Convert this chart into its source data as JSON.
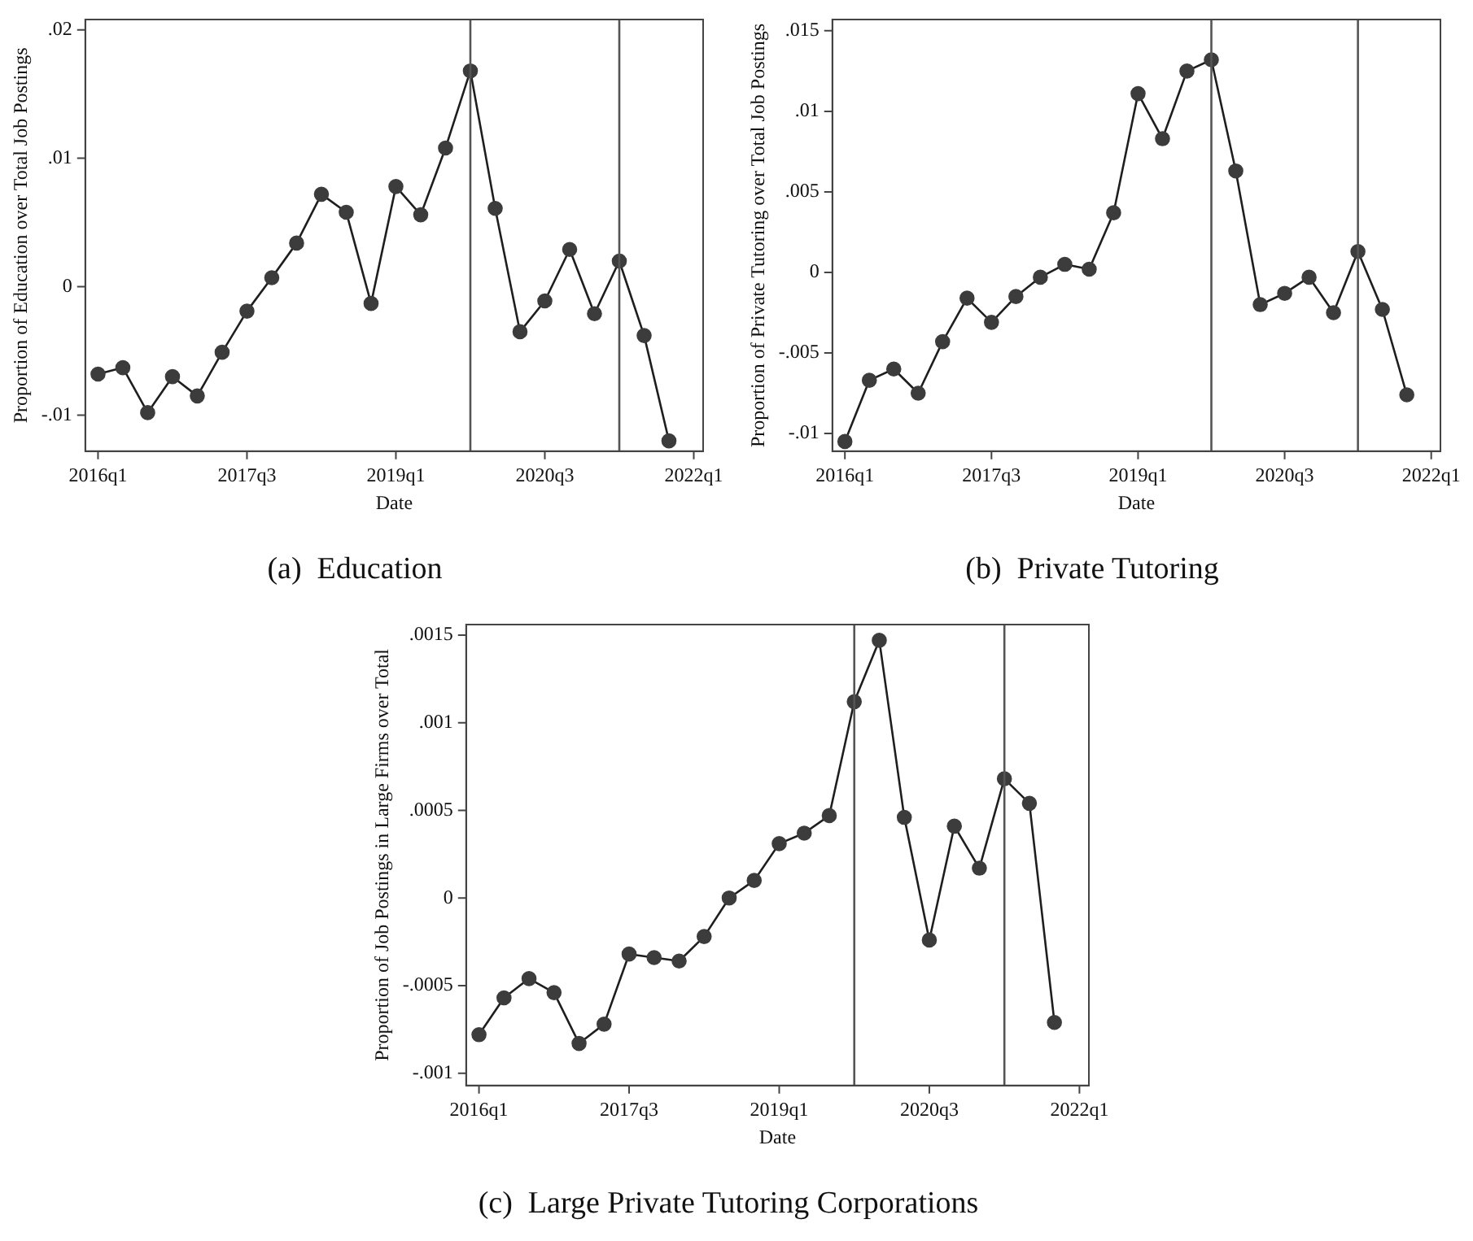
{
  "chart_data": [
    {
      "type": "line",
      "title": "(a)  Education",
      "xlabel": "Date",
      "ylabel": "Proportion of Education over Total Job Postings",
      "marker": "circle",
      "grid": false,
      "legend": false,
      "x": [
        "2016-01",
        "2016-04",
        "2016-07",
        "2016-10",
        "2017-01",
        "2017-04",
        "2017-07",
        "2017-10",
        "2018-01",
        "2018-04",
        "2018-07",
        "2018-10",
        "2019-01",
        "2019-04",
        "2019-07",
        "2019-10",
        "2020-01",
        "2020-04",
        "2020-07",
        "2020-10",
        "2021-01",
        "2021-04",
        "2021-07",
        "2021-10"
      ],
      "series": [
        {
          "color": "#3c3c3c",
          "values": [
            -0.0068,
            -0.0063,
            -0.0098,
            -0.007,
            -0.0085,
            -0.0051,
            -0.0019,
            0.0007,
            0.0034,
            0.0072,
            0.0058,
            -0.0013,
            0.0078,
            0.0056,
            0.0108,
            0.0168,
            0.0061,
            -0.0035,
            -0.0011,
            0.0029,
            -0.0021,
            0.002,
            -0.0038,
            -0.012
          ]
        }
      ],
      "xlim": [
        "2015-11-15",
        "2022-02-05"
      ],
      "ylim": [
        -0.0128,
        0.0208
      ],
      "xticks": [
        {
          "value": "2016-01",
          "label": "2016q1"
        },
        {
          "value": "2017-07",
          "label": "2017q3"
        },
        {
          "value": "2019-01",
          "label": "2019q1"
        },
        {
          "value": "2020-07",
          "label": "2020q3"
        },
        {
          "value": "2022-01",
          "label": "2022q1"
        }
      ],
      "yticks": [
        {
          "value": -0.01,
          "label": "-.01"
        },
        {
          "value": 0,
          "label": "0"
        },
        {
          "value": 0.01,
          "label": ".01"
        },
        {
          "value": 0.02,
          "label": ".02"
        }
      ],
      "ref_lines": [
        {
          "axis": "x",
          "value": "2019-10",
          "color": "#555555"
        },
        {
          "axis": "x",
          "value": "2021-04",
          "color": "#555555"
        }
      ]
    },
    {
      "type": "line",
      "title": "(b)  Private Tutoring",
      "xlabel": "Date",
      "ylabel": "Proportion of Private Tutoring over Total Job Postings",
      "marker": "circle",
      "grid": false,
      "legend": false,
      "x": [
        "2016-01",
        "2016-04",
        "2016-07",
        "2016-10",
        "2017-01",
        "2017-04",
        "2017-07",
        "2017-10",
        "2018-01",
        "2018-04",
        "2018-07",
        "2018-10",
        "2019-01",
        "2019-04",
        "2019-07",
        "2019-10",
        "2020-01",
        "2020-04",
        "2020-07",
        "2020-10",
        "2021-01",
        "2021-04",
        "2021-07",
        "2021-10"
      ],
      "series": [
        {
          "color": "#3c3c3c",
          "values": [
            -0.0105,
            -0.0067,
            -0.006,
            -0.0075,
            -0.0043,
            -0.0016,
            -0.0031,
            -0.0015,
            -0.0003,
            0.0005,
            0.0002,
            0.0037,
            0.0111,
            0.0083,
            0.0125,
            0.0132,
            0.0063,
            -0.002,
            -0.0013,
            -0.0003,
            -0.0025,
            0.0013,
            -0.0023,
            -0.0076
          ]
        }
      ],
      "xlim": [
        "2015-11-15",
        "2022-02-05"
      ],
      "ylim": [
        -0.0111,
        0.0157
      ],
      "xticks": [
        {
          "value": "2016-01",
          "label": "2016q1"
        },
        {
          "value": "2017-07",
          "label": "2017q3"
        },
        {
          "value": "2019-01",
          "label": "2019q1"
        },
        {
          "value": "2020-07",
          "label": "2020q3"
        },
        {
          "value": "2022-01",
          "label": "2022q1"
        }
      ],
      "yticks": [
        {
          "value": -0.01,
          "label": "-.01"
        },
        {
          "value": -0.005,
          "label": "-.005"
        },
        {
          "value": 0,
          "label": "0"
        },
        {
          "value": 0.005,
          "label": ".005"
        },
        {
          "value": 0.01,
          "label": ".01"
        },
        {
          "value": 0.015,
          "label": ".015"
        }
      ],
      "ref_lines": [
        {
          "axis": "x",
          "value": "2019-10",
          "color": "#555555"
        },
        {
          "axis": "x",
          "value": "2021-04",
          "color": "#555555"
        }
      ]
    },
    {
      "type": "line",
      "title": "(c)  Large Private Tutoring Corporations",
      "xlabel": "Date",
      "ylabel": "Proportion of Job Postings in Large Firms over Total",
      "marker": "circle",
      "grid": false,
      "legend": false,
      "x": [
        "2016-01",
        "2016-04",
        "2016-07",
        "2016-10",
        "2017-01",
        "2017-04",
        "2017-07",
        "2017-10",
        "2018-01",
        "2018-04",
        "2018-07",
        "2018-10",
        "2019-01",
        "2019-04",
        "2019-07",
        "2019-10",
        "2020-01",
        "2020-04",
        "2020-07",
        "2020-10",
        "2021-01",
        "2021-04",
        "2021-07",
        "2021-10"
      ],
      "series": [
        {
          "color": "#3c3c3c",
          "values": [
            -0.00078,
            -0.00057,
            -0.00046,
            -0.00054,
            -0.00083,
            -0.00072,
            -0.00032,
            -0.00034,
            -0.00036,
            -0.00022,
            0,
            0.0001,
            0.00031,
            0.00037,
            0.00047,
            0.00112,
            0.00147,
            0.00046,
            -0.00024,
            0.00041,
            0.00017,
            0.00068,
            0.00054,
            -0.00071
          ]
        }
      ],
      "xlim": [
        "2015-11-15",
        "2022-02-05"
      ],
      "ylim": [
        -0.00107,
        0.00156
      ],
      "xticks": [
        {
          "value": "2016-01",
          "label": "2016q1"
        },
        {
          "value": "2017-07",
          "label": "2017q3"
        },
        {
          "value": "2019-01",
          "label": "2019q1"
        },
        {
          "value": "2020-07",
          "label": "2020q3"
        },
        {
          "value": "2022-01",
          "label": "2022q1"
        }
      ],
      "yticks": [
        {
          "value": -0.001,
          "label": "-.001"
        },
        {
          "value": -0.0005,
          "label": "-.0005"
        },
        {
          "value": 0,
          "label": "0"
        },
        {
          "value": 0.0005,
          "label": ".0005"
        },
        {
          "value": 0.001,
          "label": ".001"
        },
        {
          "value": 0.0015,
          "label": ".0015"
        }
      ],
      "ref_lines": [
        {
          "axis": "x",
          "value": "2019-10",
          "color": "#555555"
        },
        {
          "axis": "x",
          "value": "2021-04",
          "color": "#555555"
        }
      ]
    }
  ]
}
